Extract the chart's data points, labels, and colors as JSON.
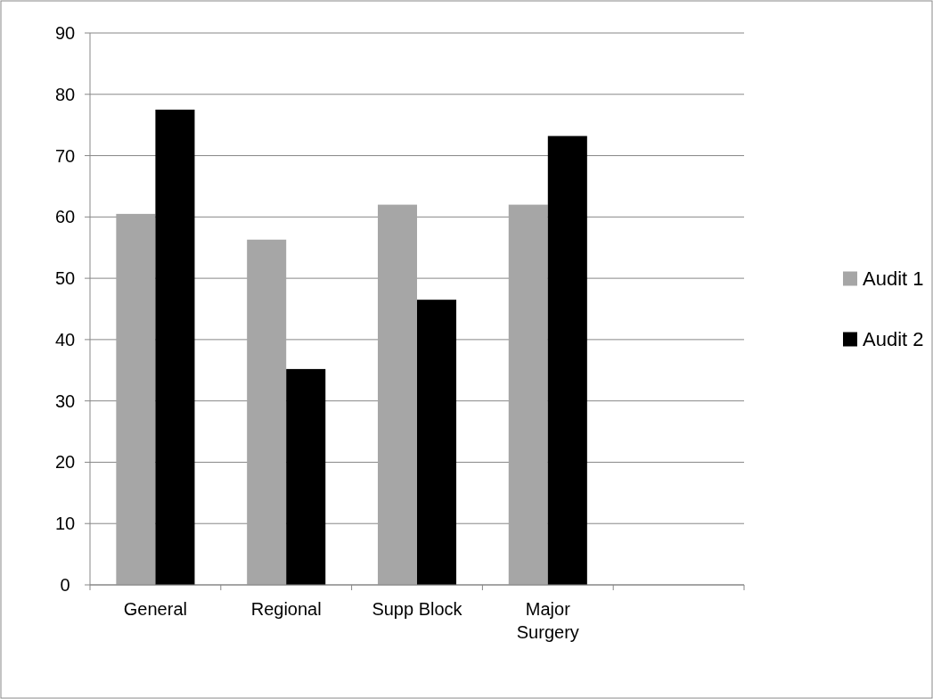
{
  "chart_data": {
    "type": "bar",
    "categories": [
      "General",
      "Regional",
      "Supp Block",
      "Major Surgery",
      null
    ],
    "series": [
      {
        "name": "Audit 1",
        "color": "#a6a6a6",
        "values": [
          60.5,
          56.3,
          62,
          62,
          null
        ]
      },
      {
        "name": "Audit 2",
        "color": "#000000",
        "values": [
          77.5,
          35.2,
          46.5,
          73.2,
          null
        ]
      }
    ],
    "ylim": [
      0,
      90
    ],
    "yticks": [
      0,
      10,
      20,
      30,
      40,
      50,
      60,
      70,
      80,
      90
    ],
    "grid": "y",
    "legend": "right"
  }
}
